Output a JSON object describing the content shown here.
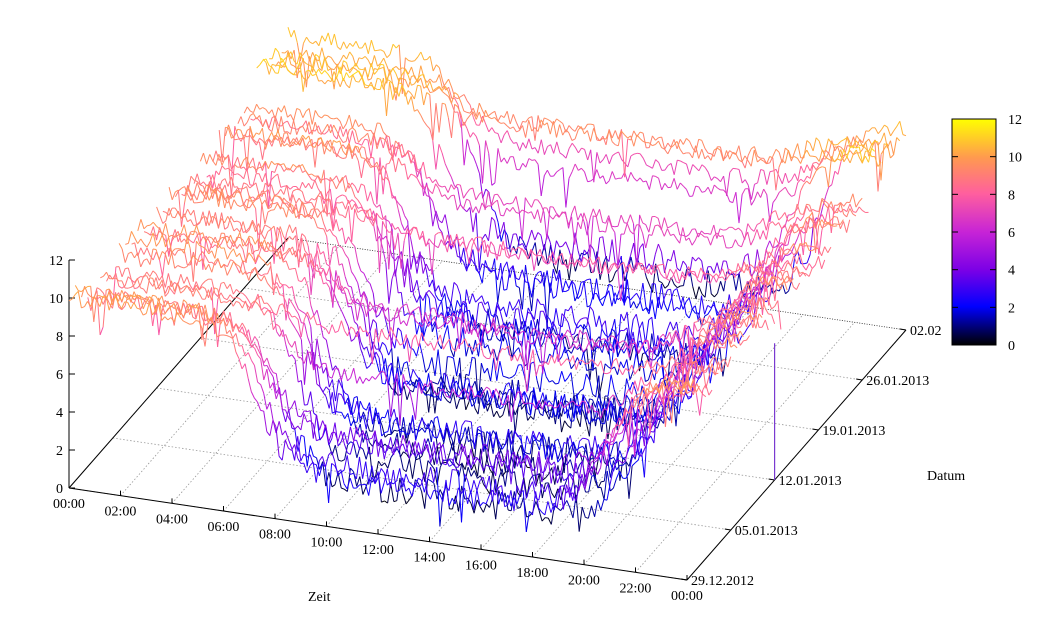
{
  "chart_data": {
    "type": "surface",
    "title": "",
    "xlabel": "Zeit",
    "ylabel": "Datum",
    "zlabel": "",
    "x_ticks": [
      "00:00",
      "02:00",
      "04:00",
      "06:00",
      "08:00",
      "10:00",
      "12:00",
      "14:00",
      "16:00",
      "18:00",
      "20:00",
      "22:00",
      "00:00"
    ],
    "y_ticks": [
      "29.12.2012",
      "05.01.2013",
      "12.01.2013",
      "19.01.2013",
      "26.01.2013",
      "02.02"
    ],
    "z_ticks": [
      "0",
      "2",
      "4",
      "6",
      "8",
      "10",
      "12"
    ],
    "xlim_hours": [
      0,
      24
    ],
    "ylim_days": [
      0,
      35
    ],
    "zlim": [
      0,
      12
    ],
    "grid": true,
    "colorbar": {
      "ticks": [
        "0",
        "2",
        "4",
        "6",
        "8",
        "10",
        "12"
      ],
      "range": [
        0,
        12
      ],
      "colors": [
        "#000000",
        "#0000ff",
        "#7a00e6",
        "#c724d6",
        "#ff5f9e",
        "#ff9a4f",
        "#ffff00"
      ]
    },
    "series_profile": {
      "hours": [
        0,
        2,
        4,
        5,
        6,
        7,
        8,
        9,
        10,
        12,
        14,
        16,
        18,
        20,
        21,
        22,
        23,
        24
      ],
      "night_value": 9.3,
      "daytime_minimum": 1.5
    }
  }
}
